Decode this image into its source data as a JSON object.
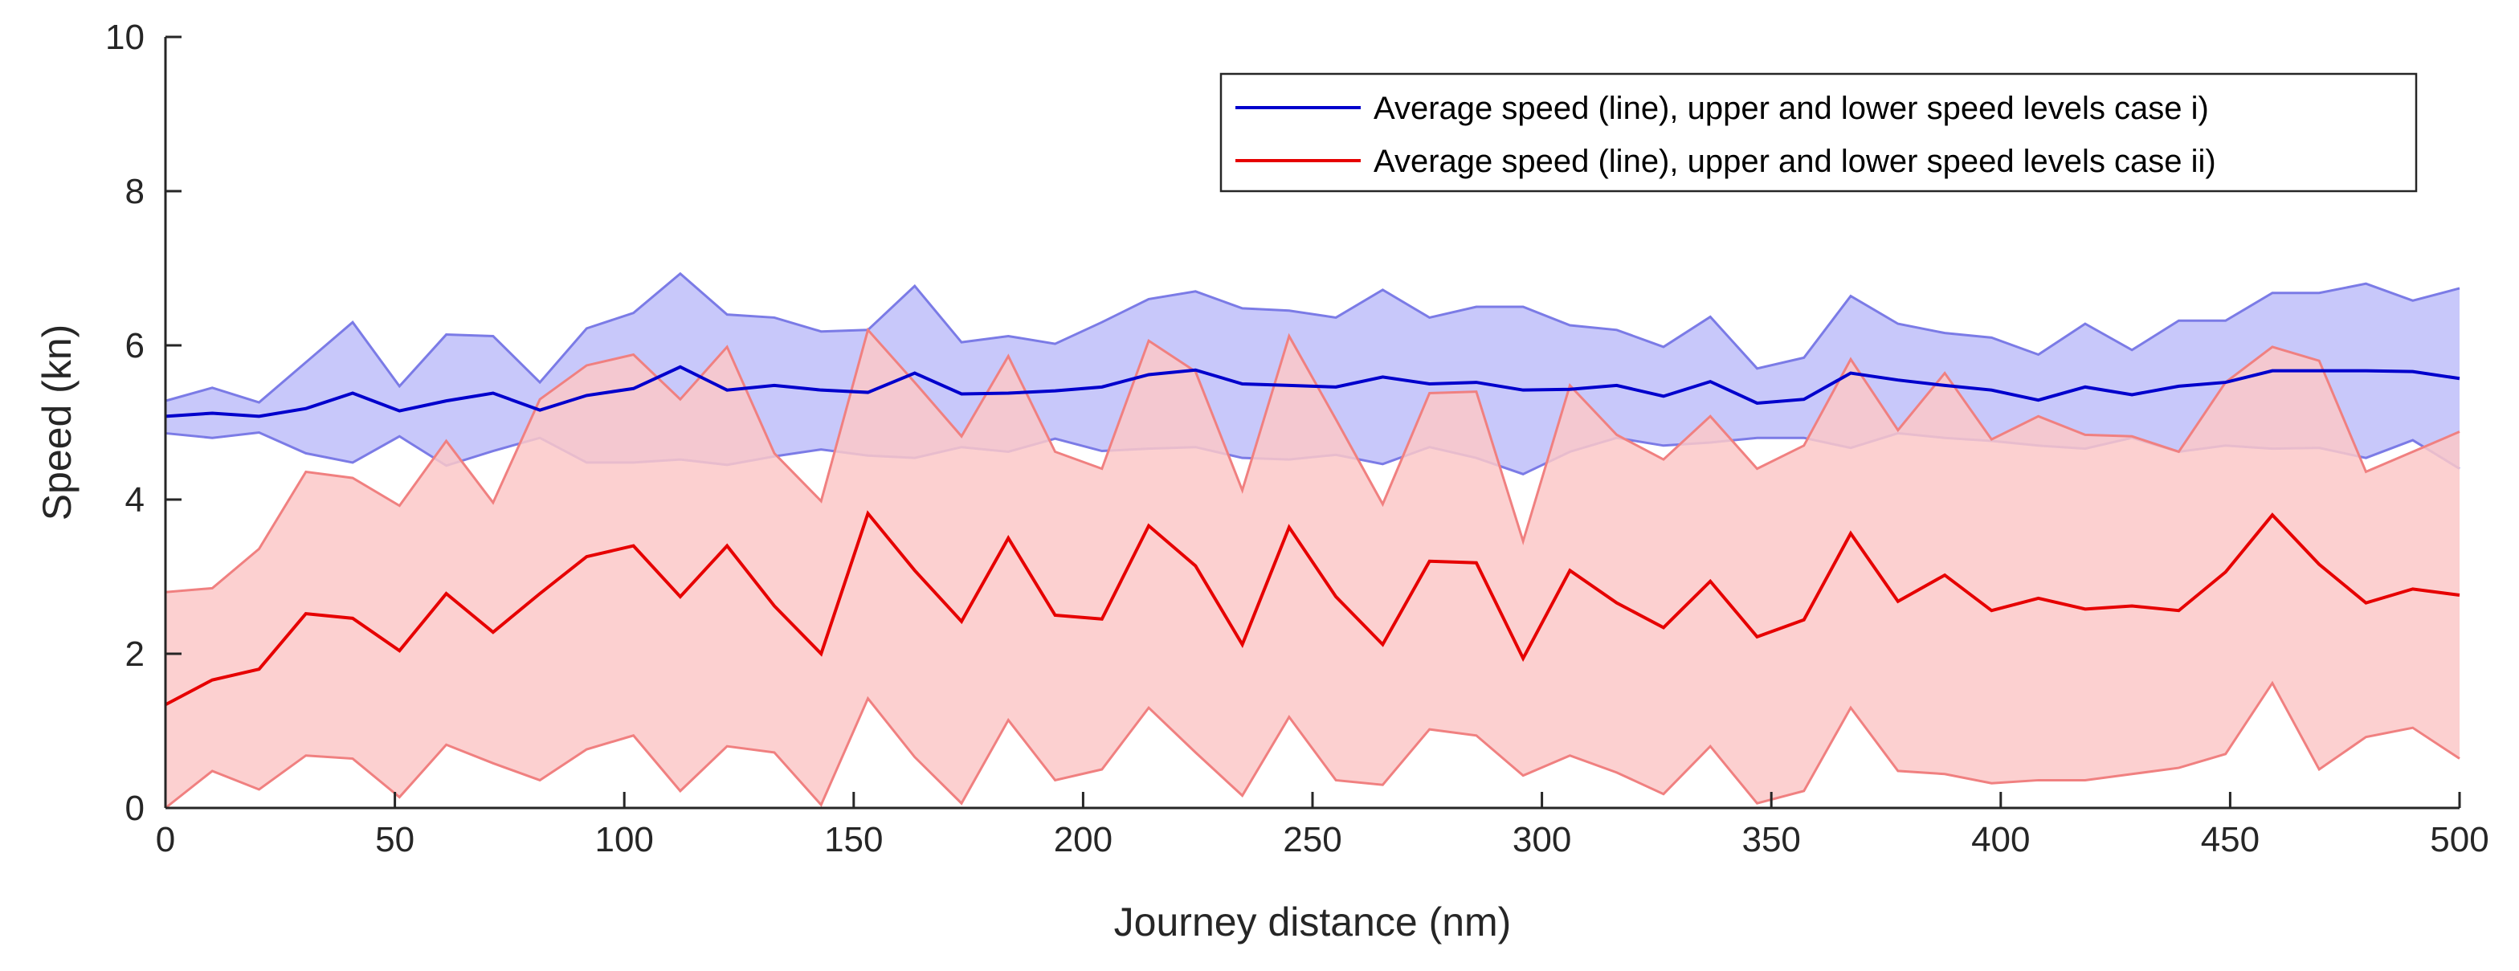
{
  "chart_data": {
    "type": "line",
    "title": "",
    "xlabel": "Journey distance (nm)",
    "ylabel": "Speed (kn)",
    "xlim": [
      0,
      500
    ],
    "ylim": [
      0,
      10
    ],
    "xticks": [
      0,
      50,
      100,
      150,
      200,
      250,
      300,
      350,
      400,
      450,
      500
    ],
    "yticks": [
      0,
      2,
      4,
      6,
      8,
      10
    ],
    "grid": false,
    "legend_position": "top-right",
    "x": [
      0,
      10.2,
      20.4,
      30.6,
      40.8,
      51.0,
      61.2,
      71.4,
      81.6,
      91.8,
      102.0,
      112.2,
      122.4,
      132.7,
      142.9,
      153.1,
      163.3,
      173.5,
      183.7,
      193.9,
      204.1,
      214.3,
      224.5,
      234.7,
      244.9,
      255.1,
      265.3,
      275.5,
      285.7,
      295.9,
      306.1,
      316.3,
      326.5,
      336.7,
      346.9,
      357.1,
      367.3,
      377.6,
      387.8,
      398.0,
      408.2,
      418.4,
      428.6,
      438.8,
      449.0,
      459.2,
      469.4,
      479.6,
      489.8,
      500.0
    ],
    "series": [
      {
        "name": "Average speed (line), upper and lower speed levels case i)",
        "color": "#0000cc",
        "fill_color": "#c8c8fa",
        "fill_edge_color": "#7b7be6",
        "average": [
          5.08,
          5.12,
          5.08,
          5.18,
          5.38,
          5.15,
          5.28,
          5.38,
          5.16,
          5.35,
          5.44,
          5.72,
          5.42,
          5.48,
          5.42,
          5.39,
          5.64,
          5.37,
          5.38,
          5.41,
          5.46,
          5.62,
          5.68,
          5.5,
          5.48,
          5.46,
          5.59,
          5.5,
          5.52,
          5.42,
          5.43,
          5.48,
          5.34,
          5.53,
          5.25,
          5.3,
          5.64,
          5.55,
          5.48,
          5.42,
          5.29,
          5.46,
          5.36,
          5.47,
          5.52,
          5.67,
          5.67,
          5.67,
          5.66,
          5.57
        ],
        "upper": [
          5.28,
          5.45,
          5.26,
          5.78,
          6.3,
          5.47,
          6.14,
          6.12,
          5.52,
          6.22,
          6.42,
          6.93,
          6.4,
          6.36,
          6.18,
          6.2,
          6.77,
          6.04,
          6.12,
          6.02,
          6.3,
          6.6,
          6.7,
          6.48,
          6.45,
          6.36,
          6.72,
          6.36,
          6.5,
          6.5,
          6.26,
          6.2,
          5.98,
          6.37,
          5.7,
          5.84,
          6.64,
          6.28,
          6.16,
          6.1,
          5.88,
          6.28,
          5.94,
          6.32,
          6.32,
          6.68,
          6.68,
          6.8,
          6.58,
          6.74
        ],
        "lower": [
          4.86,
          4.8,
          4.87,
          4.6,
          4.48,
          4.82,
          4.44,
          4.63,
          4.8,
          4.48,
          4.48,
          4.52,
          4.45,
          4.56,
          4.65,
          4.57,
          4.54,
          4.68,
          4.62,
          4.79,
          4.63,
          4.66,
          4.68,
          4.54,
          4.52,
          4.58,
          4.46,
          4.68,
          4.54,
          4.33,
          4.62,
          4.8,
          4.7,
          4.74,
          4.8,
          4.8,
          4.67,
          4.86,
          4.8,
          4.76,
          4.7,
          4.66,
          4.8,
          4.62,
          4.7,
          4.66,
          4.67,
          4.54,
          4.77,
          4.4
        ]
      },
      {
        "name": "Average speed (line), upper and lower speed levels case ii)",
        "color": "#e60000",
        "fill_color": "#fcc8c8",
        "fill_edge_color": "#f08080",
        "average": [
          1.34,
          1.66,
          1.8,
          2.52,
          2.46,
          2.04,
          2.78,
          2.28,
          2.78,
          3.26,
          3.4,
          2.74,
          3.4,
          2.62,
          2.0,
          3.82,
          3.08,
          2.42,
          3.5,
          2.5,
          2.45,
          3.66,
          3.14,
          2.12,
          3.64,
          2.74,
          2.12,
          3.2,
          3.18,
          1.94,
          3.08,
          2.66,
          2.34,
          2.94,
          2.22,
          2.44,
          3.56,
          2.68,
          3.02,
          2.56,
          2.72,
          2.58,
          2.62,
          2.56,
          3.06,
          3.8,
          3.16,
          2.66,
          2.84,
          2.76
        ],
        "upper": [
          2.8,
          2.85,
          3.36,
          4.36,
          4.28,
          3.92,
          4.76,
          3.96,
          5.3,
          5.74,
          5.88,
          5.3,
          5.98,
          4.6,
          3.98,
          6.2,
          5.52,
          4.82,
          5.86,
          4.62,
          4.4,
          6.06,
          5.66,
          4.12,
          6.12,
          5.04,
          3.94,
          5.38,
          5.4,
          3.46,
          5.48,
          4.84,
          4.52,
          5.08,
          4.4,
          4.7,
          5.82,
          4.9,
          5.64,
          4.78,
          5.08,
          4.84,
          4.82,
          4.62,
          5.52,
          5.98,
          5.8,
          4.36,
          4.62,
          4.88
        ],
        "lower": [
          0.0,
          0.48,
          0.24,
          0.68,
          0.64,
          0.14,
          0.82,
          0.58,
          0.36,
          0.76,
          0.94,
          0.22,
          0.8,
          0.72,
          0.04,
          1.42,
          0.66,
          0.06,
          1.14,
          0.36,
          0.5,
          1.3,
          0.72,
          0.16,
          1.18,
          0.36,
          0.3,
          1.02,
          0.94,
          0.42,
          0.68,
          0.46,
          0.18,
          0.8,
          0.06,
          0.22,
          1.3,
          0.48,
          0.44,
          0.32,
          0.36,
          0.36,
          0.44,
          0.52,
          0.7,
          1.62,
          0.5,
          0.92,
          1.04,
          0.64
        ]
      }
    ]
  }
}
